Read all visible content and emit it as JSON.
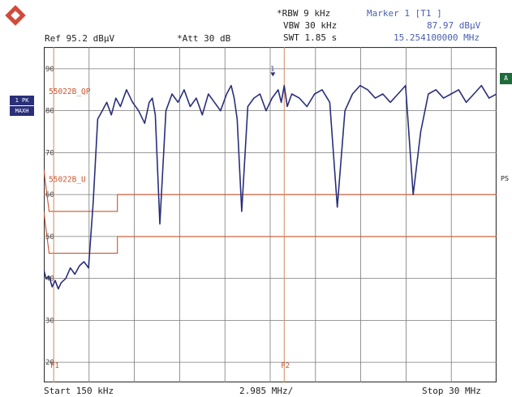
{
  "header": {
    "rbw": "*RBW 9 kHz",
    "vbw": "VBW 30 kHz",
    "swt": "SWT 1.85 s",
    "ref": "Ref  95.2 dBμV",
    "att": "*Att  30 dB",
    "marker_title": "Marker 1 [T1 ]",
    "marker_level": "87.97 dBμV",
    "marker_freq": "15.254100000 MHz"
  },
  "left_panel": {
    "trace_mode_1": "1 PK",
    "trace_mode_2": "MAXH"
  },
  "right_panel": {
    "badge": "A",
    "ps_label": "PS"
  },
  "footer": {
    "start": "Start 150 kHz",
    "span": "2.985 MHz/",
    "stop": "Stop 30 MHz"
  },
  "colors": {
    "trace": "#2a2f7a",
    "limit_line": "#c8562e",
    "grid": "#7a7a7a",
    "marker_line": "#d48a5a",
    "brand_logo": "#d14b3a"
  },
  "chart_data": {
    "type": "line",
    "x_unit": "MHz",
    "y_unit": "dBμV",
    "xlim": [
      0.15,
      30
    ],
    "ylim": [
      15.2,
      95.2
    ],
    "y_ticks": [
      {
        "value": 90,
        "label": "90"
      },
      {
        "value": 80,
        "label": "80"
      },
      {
        "value": 70,
        "label": "70"
      },
      {
        "value": 60,
        "label": "60"
      },
      {
        "value": 50,
        "label": "50"
      },
      {
        "value": 40,
        "label": "40"
      },
      {
        "value": 30,
        "label": "30"
      },
      {
        "value": 20,
        "label": "20"
      }
    ],
    "limit_lines": [
      {
        "name": "55022B_QP",
        "points": [
          [
            0.15,
            66
          ],
          [
            0.5,
            56
          ],
          [
            5,
            56
          ],
          [
            5,
            60
          ],
          [
            30,
            60
          ]
        ],
        "label_value": 84
      },
      {
        "name": "55022B_U",
        "points": [
          [
            0.15,
            56
          ],
          [
            0.5,
            46
          ],
          [
            5,
            46
          ],
          [
            5,
            50
          ],
          [
            30,
            50
          ]
        ],
        "label_value": 63
      }
    ],
    "frequency_lines": [
      {
        "name": "F1",
        "x": 0.8
      },
      {
        "name": "F2",
        "x": 16.0
      }
    ],
    "marker": {
      "name": "1",
      "x": 15.254,
      "y": 87.97
    },
    "series": [
      {
        "x": [
          0.15,
          0.3,
          0.5,
          0.7,
          0.9,
          1.1,
          1.3,
          1.6,
          1.9,
          2.2,
          2.5,
          2.8,
          3.1,
          3.4,
          3.7,
          4.0,
          4.3,
          4.6,
          4.9,
          5.2,
          5.6,
          6.0,
          6.4,
          6.8,
          7.1,
          7.3,
          7.5,
          7.8,
          8.2,
          8.6,
          9.0,
          9.4,
          9.8,
          10.2,
          10.6,
          11.0,
          11.4,
          11.8,
          12.2,
          12.5,
          12.7,
          12.9,
          13.2,
          13.6,
          14.0,
          14.4,
          14.8,
          15.2,
          15.6,
          15.8,
          16.0,
          16.2,
          16.5,
          17.0,
          17.5,
          18.0,
          18.5,
          19.0,
          19.5,
          20.0,
          20.5,
          21.0,
          21.5,
          22.0,
          22.5,
          23.0,
          23.5,
          24.0,
          24.5,
          25.0,
          25.5,
          26.0,
          26.5,
          27.0,
          27.5,
          28.0,
          28.5,
          29.0,
          29.5,
          30.0
        ],
        "y": [
          42,
          40,
          40.5,
          38,
          39.5,
          37.5,
          39,
          40,
          42.5,
          41,
          43,
          44,
          42.5,
          58,
          78,
          80,
          82,
          79,
          83,
          81,
          85,
          82,
          80,
          77,
          82,
          83,
          79,
          53,
          80,
          84,
          82,
          85,
          81,
          83,
          79,
          84,
          82,
          80,
          84,
          86,
          83,
          78,
          56,
          81,
          83,
          84,
          80,
          83,
          85,
          82,
          86,
          81,
          84,
          83,
          81,
          84,
          85,
          82,
          57,
          80,
          84,
          86,
          85,
          83,
          84,
          82,
          84,
          86,
          60,
          75,
          84,
          85,
          83,
          84,
          85,
          82,
          84,
          86,
          83,
          84
        ]
      }
    ]
  }
}
